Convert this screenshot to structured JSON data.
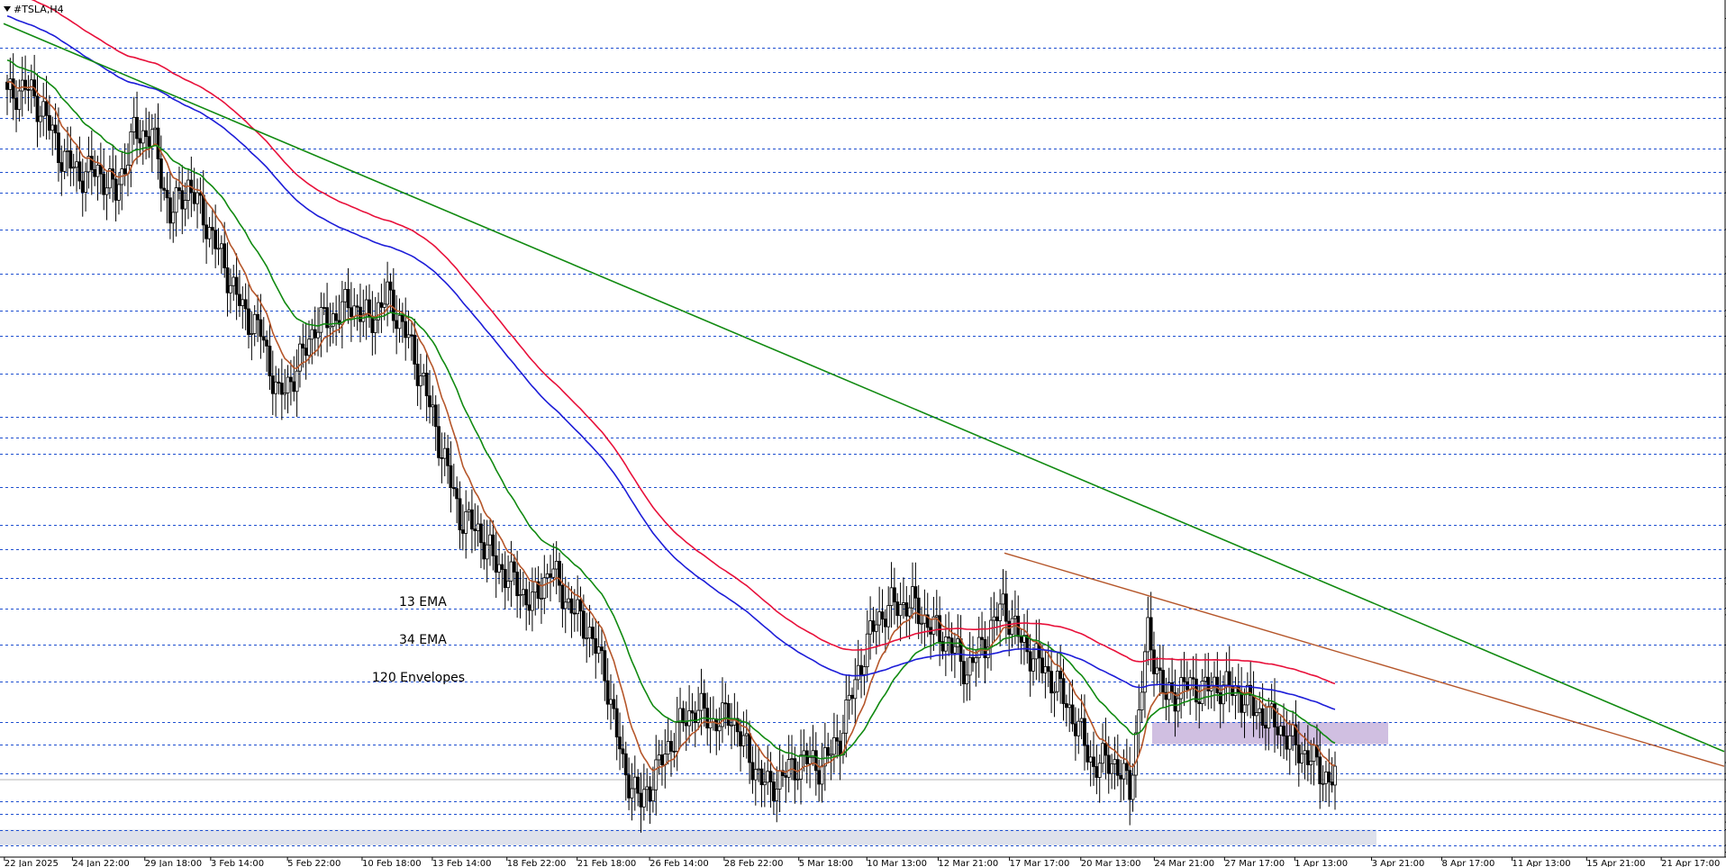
{
  "window": {
    "title": "#TSLA,H4"
  },
  "chart_data": {
    "type": "candlestick",
    "symbol": "#TSLA",
    "timeframe": "H4",
    "ylim": [
      204.6,
      437.0
    ],
    "price_ticks": [
      "435.40",
      "427.50",
      "420.75",
      "414.00",
      "411.00",
      "408.25",
      "403.00",
      "400.00",
      "393.65",
      "388.00",
      "378.00",
      "370.60",
      "366.00",
      "362.60",
      "356.00",
      "354.40",
      "349.00",
      "346.40",
      "338.75",
      "330.20",
      "327.00",
      "321.50",
      "317.00",
      "314.00",
      "308.00",
      "305.60",
      "297.75",
      "291.00",
      "283.25",
      "281.60",
      "275.00",
      "273.20",
      "265.00",
      "257.40",
      "255.00",
      "249.20",
      "244.00",
      "241.20",
      "238.00",
      "233.00",
      "230.00",
      "228.35",
      "225.00",
      "222.50",
      "219.00",
      "216.80",
      "214.75",
      "210.50",
      "208.60"
    ],
    "highlighted_levels": [
      "427.50",
      "420.75",
      "414.00",
      "408.25",
      "400.00",
      "393.65",
      "388.00",
      "378.00",
      "366.00",
      "356.00",
      "349.00",
      "338.75",
      "327.00",
      "321.50",
      "317.00",
      "308.00",
      "297.75",
      "291.00",
      "283.25",
      "275.00",
      "265.00",
      "255.00",
      "244.00",
      "238.00",
      "230.00",
      "222.50",
      "219.00",
      "214.75",
      "210.50"
    ],
    "current_price": "228.35",
    "time_labels": [
      "22 Jan 2025",
      "24 Jan 22:00",
      "29 Jan 18:00",
      "3 Feb 14:00",
      "5 Feb 22:00",
      "10 Feb 18:00",
      "13 Feb 14:00",
      "18 Feb 22:00",
      "21 Feb 18:00",
      "26 Feb 14:00",
      "28 Feb 22:00",
      "5 Mar 18:00",
      "10 Mar 13:00",
      "12 Mar 21:00",
      "17 Mar 17:00",
      "20 Mar 13:00",
      "24 Mar 21:00",
      "27 Mar 17:00",
      "1 Apr 13:00",
      "3 Apr 21:00",
      "8 Apr 17:00",
      "11 Apr 13:00",
      "15 Apr 21:00",
      "21 Apr 17:00"
    ],
    "close_path": [
      [
        0,
        414
      ],
      [
        6,
        417
      ],
      [
        12,
        410
      ],
      [
        18,
        398
      ],
      [
        24,
        393
      ],
      [
        30,
        394
      ],
      [
        36,
        388
      ],
      [
        42,
        404
      ],
      [
        48,
        404
      ],
      [
        54,
        382
      ],
      [
        60,
        390
      ],
      [
        66,
        380
      ],
      [
        72,
        368
      ],
      [
        78,
        356
      ],
      [
        84,
        350
      ],
      [
        90,
        332
      ],
      [
        96,
        340
      ],
      [
        102,
        352
      ],
      [
        108,
        354
      ],
      [
        114,
        358
      ],
      [
        120,
        353
      ],
      [
        126,
        360
      ],
      [
        132,
        350
      ],
      [
        138,
        336
      ],
      [
        144,
        318
      ],
      [
        150,
        300
      ],
      [
        156,
        296
      ],
      [
        162,
        287
      ],
      [
        168,
        282
      ],
      [
        174,
        276
      ],
      [
        180,
        286
      ],
      [
        186,
        276
      ],
      [
        192,
        270
      ],
      [
        198,
        258
      ],
      [
        204,
        232
      ],
      [
        210,
        222
      ],
      [
        216,
        232
      ],
      [
        222,
        242
      ],
      [
        228,
        248
      ],
      [
        234,
        244
      ],
      [
        240,
        246
      ],
      [
        246,
        234
      ],
      [
        252,
        226
      ],
      [
        258,
        230
      ],
      [
        264,
        234
      ],
      [
        270,
        232
      ],
      [
        276,
        240
      ],
      [
        282,
        258
      ],
      [
        288,
        272
      ],
      [
        294,
        276
      ],
      [
        300,
        276
      ],
      [
        306,
        270
      ],
      [
        312,
        266
      ],
      [
        318,
        258
      ],
      [
        324,
        266
      ],
      [
        330,
        276
      ],
      [
        336,
        266
      ],
      [
        342,
        260
      ],
      [
        348,
        254
      ],
      [
        354,
        244
      ],
      [
        360,
        232
      ],
      [
        366,
        234
      ],
      [
        372,
        226
      ],
      [
        378,
        268
      ],
      [
        384,
        250
      ],
      [
        390,
        254
      ],
      [
        396,
        253
      ],
      [
        402,
        254
      ],
      [
        408,
        252
      ],
      [
        414,
        247
      ],
      [
        420,
        244
      ],
      [
        426,
        238
      ],
      [
        432,
        234
      ],
      [
        438,
        228
      ],
      [
        440,
        229
      ]
    ],
    "series": [
      {
        "name": "13 EMA",
        "color": "#b5562a"
      },
      {
        "name": "34 EMA",
        "color": "#118a11"
      },
      {
        "name": "120 Envelopes",
        "color": "#e8103a"
      },
      {
        "color": "#1d1dd8"
      }
    ],
    "trendlines": [
      {
        "color": "#118a11"
      },
      {
        "color": "#b5562a"
      }
    ],
    "zones": [
      {
        "from": "238.00",
        "to": "244.00",
        "color": "#c8b4dc"
      },
      {
        "from": "210.50",
        "to": "214.75",
        "color": "#d8dce8"
      }
    ]
  }
}
